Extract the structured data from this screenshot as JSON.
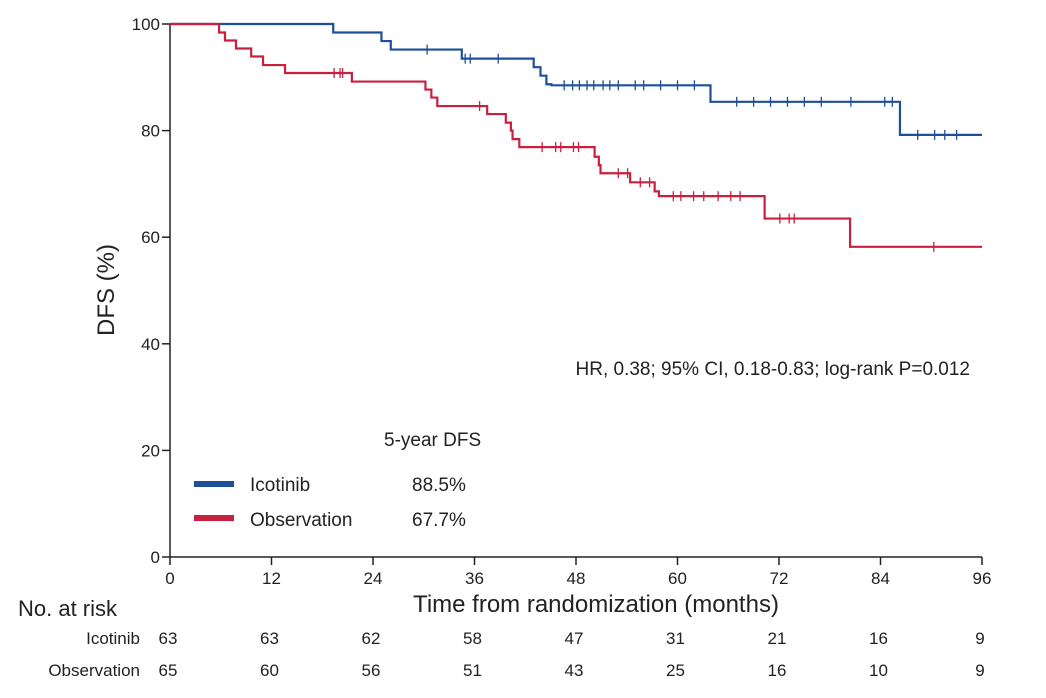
{
  "chart_data": {
    "type": "line",
    "title": "",
    "xlabel": "Time from randomization (months)",
    "ylabel": "DFS (%)",
    "xlim": [
      0,
      96
    ],
    "ylim": [
      0,
      100
    ],
    "x_ticks": [
      "0",
      "12",
      "24",
      "36",
      "48",
      "60",
      "72",
      "84",
      "96"
    ],
    "y_ticks": [
      "0",
      "20",
      "40",
      "60",
      "80",
      "100"
    ],
    "grid": false,
    "annotation": "HR, 0.38; 95% CI, 0.18-0.83; log-rank P=0.012",
    "legend": {
      "title": "5-year DFS",
      "position": "lower-left",
      "entries": [
        {
          "name": "Icotinib",
          "value": "88.5%",
          "color": "#1f4e9a"
        },
        {
          "name": "Observation",
          "value": "67.7%",
          "color": "#c8203f"
        }
      ]
    },
    "series": [
      {
        "name": "Icotinib",
        "color": "#1f4e9a",
        "steps": [
          [
            0,
            100
          ],
          [
            19.3,
            98.4
          ],
          [
            25,
            96.8
          ],
          [
            26.1,
            95.2
          ],
          [
            34.5,
            93.5
          ],
          [
            43,
            91.9
          ],
          [
            43.8,
            90.3
          ],
          [
            44.5,
            88.7
          ],
          [
            45.1,
            88.5
          ],
          [
            63.9,
            85.4
          ],
          [
            86.3,
            79.2
          ],
          [
            96,
            79.2
          ]
        ],
        "censored": [
          [
            30.4,
            95.2
          ],
          [
            34.9,
            93.5
          ],
          [
            35.5,
            93.5
          ],
          [
            38.8,
            93.5
          ],
          [
            46.6,
            88.5
          ],
          [
            47.6,
            88.5
          ],
          [
            48.4,
            88.5
          ],
          [
            49.3,
            88.5
          ],
          [
            50.1,
            88.5
          ],
          [
            51.2,
            88.5
          ],
          [
            52,
            88.5
          ],
          [
            53,
            88.5
          ],
          [
            55,
            88.5
          ],
          [
            56,
            88.5
          ],
          [
            58,
            88.5
          ],
          [
            60,
            88.5
          ],
          [
            62,
            88.5
          ],
          [
            67,
            85.4
          ],
          [
            69,
            85.4
          ],
          [
            71,
            85.4
          ],
          [
            73,
            85.4
          ],
          [
            75,
            85.4
          ],
          [
            77,
            85.4
          ],
          [
            80.5,
            85.4
          ],
          [
            84.5,
            85.4
          ],
          [
            85.4,
            85.4
          ],
          [
            88.4,
            79.2
          ],
          [
            90.4,
            79.2
          ],
          [
            91.6,
            79.2
          ],
          [
            93,
            79.2
          ]
        ]
      },
      {
        "name": "Observation",
        "color": "#c8203f",
        "steps": [
          [
            0,
            100
          ],
          [
            5.8,
            98.4
          ],
          [
            6.5,
            96.9
          ],
          [
            7.8,
            95.4
          ],
          [
            9.6,
            93.9
          ],
          [
            11,
            92.3
          ],
          [
            13.6,
            90.8
          ],
          [
            21.5,
            89.2
          ],
          [
            30.2,
            87.7
          ],
          [
            30.9,
            86.2
          ],
          [
            31.6,
            84.6
          ],
          [
            37.5,
            83.1
          ],
          [
            39.7,
            81.5
          ],
          [
            40.3,
            80
          ],
          [
            40.5,
            78.4
          ],
          [
            41.3,
            76.9
          ],
          [
            50.2,
            75.1
          ],
          [
            50.7,
            73.5
          ],
          [
            50.9,
            72
          ],
          [
            54.4,
            70.3
          ],
          [
            57.3,
            68.6
          ],
          [
            57.8,
            67.7
          ],
          [
            70.3,
            63.5
          ],
          [
            80.4,
            58.2
          ],
          [
            96,
            58.2
          ]
        ],
        "censored": [
          [
            19.4,
            90.8
          ],
          [
            20.1,
            90.8
          ],
          [
            20.4,
            90.8
          ],
          [
            36.6,
            84.6
          ],
          [
            44,
            76.9
          ],
          [
            45.6,
            76.9
          ],
          [
            46.2,
            76.9
          ],
          [
            47.7,
            76.9
          ],
          [
            48.3,
            76.9
          ],
          [
            53,
            72
          ],
          [
            54.1,
            72
          ],
          [
            55.6,
            70.3
          ],
          [
            56.7,
            70.3
          ],
          [
            59.5,
            67.7
          ],
          [
            60.4,
            67.7
          ],
          [
            61.9,
            67.7
          ],
          [
            63.1,
            67.7
          ],
          [
            64.8,
            67.7
          ],
          [
            66.3,
            67.7
          ],
          [
            67.4,
            67.7
          ],
          [
            72.1,
            63.5
          ],
          [
            73.2,
            63.5
          ],
          [
            73.8,
            63.5
          ],
          [
            90.3,
            58.2
          ]
        ]
      }
    ],
    "risk_table": {
      "header": "No. at risk",
      "times": [
        0,
        12,
        24,
        36,
        48,
        60,
        72,
        84,
        96
      ],
      "rows": [
        {
          "name": "Icotinib",
          "values": [
            "63",
            "63",
            "62",
            "58",
            "47",
            "31",
            "21",
            "16",
            "9"
          ]
        },
        {
          "name": "Observation",
          "values": [
            "65",
            "60",
            "56",
            "51",
            "43",
            "25",
            "16",
            "10",
            "9"
          ]
        }
      ]
    }
  }
}
